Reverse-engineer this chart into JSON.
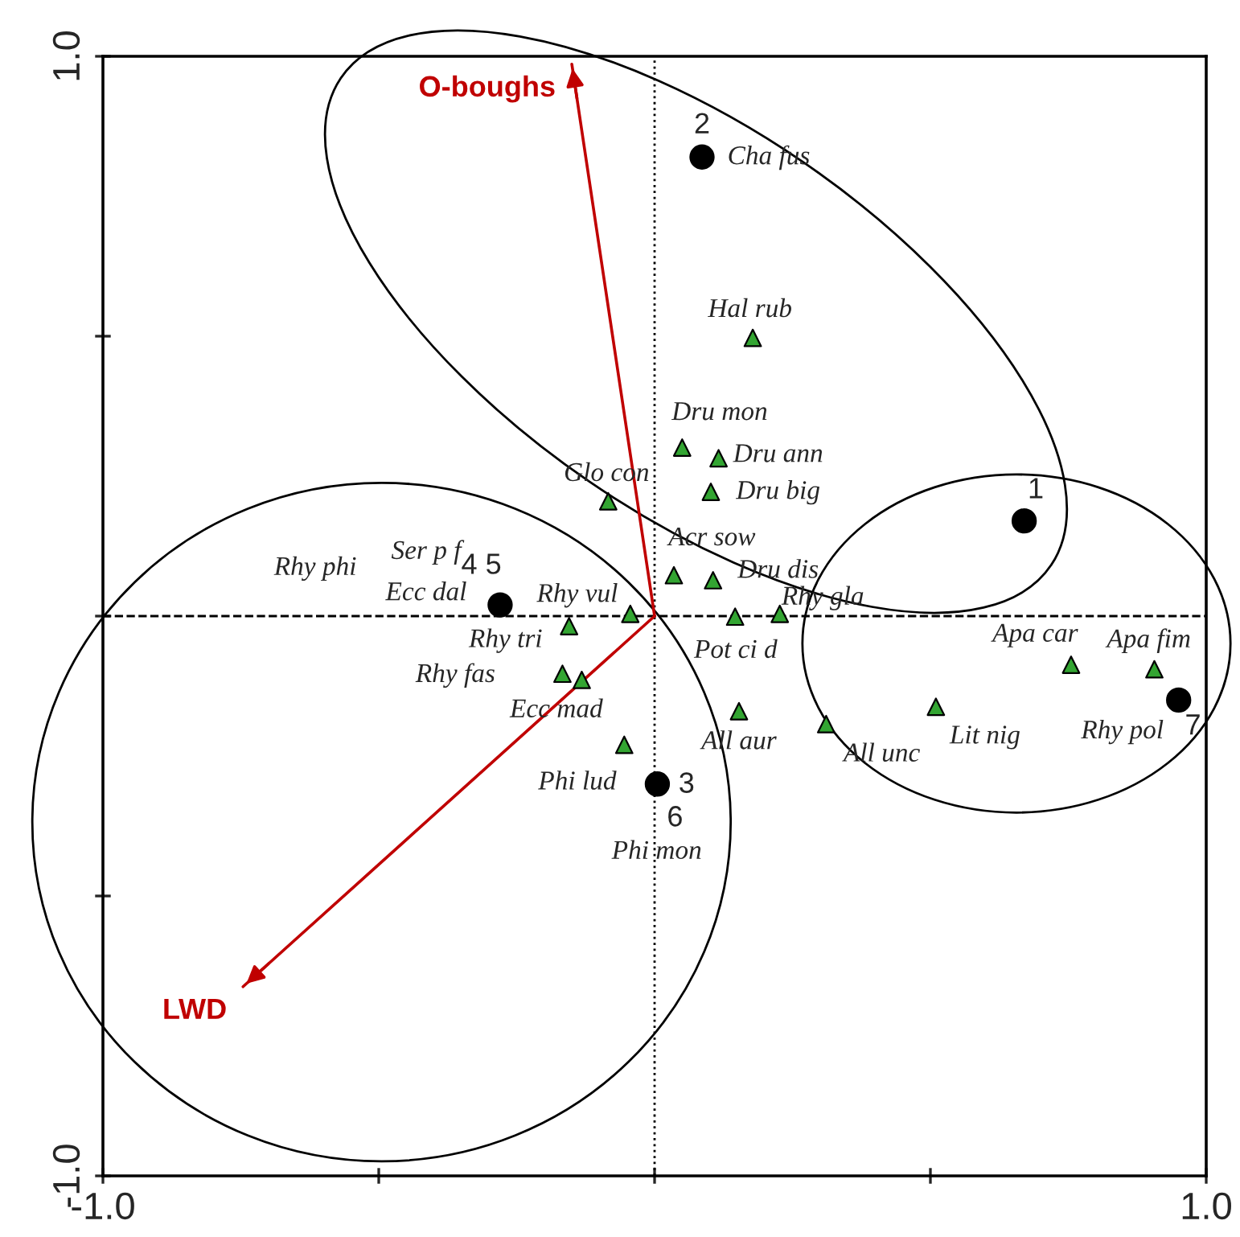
{
  "chart_data": {
    "type": "scatter",
    "xlim": [
      -1,
      1
    ],
    "ylim": [
      -1,
      1
    ],
    "xticks": [
      {
        "value": -1,
        "label": "-1.0"
      },
      {
        "value": -0.5,
        "label": null
      },
      {
        "value": 0,
        "label": null
      },
      {
        "value": 0.5,
        "label": null
      },
      {
        "value": 1,
        "label": "1.0"
      }
    ],
    "yticks": [
      {
        "value": -1,
        "label": "-1.0"
      },
      {
        "value": -0.5,
        "label": null
      },
      {
        "value": 0,
        "label": null
      },
      {
        "value": 0.5,
        "label": null
      },
      {
        "value": 1,
        "label": "1.0"
      }
    ],
    "grid": false,
    "ref_lines": [
      {
        "axis": "x",
        "value": 0,
        "color": "#000000",
        "line_style": "dotted"
      },
      {
        "axis": "y",
        "value": 0,
        "color": "#000000",
        "line_style": "dashed"
      }
    ],
    "series": [
      {
        "type": "scatter",
        "marker": "triangle",
        "color": "#33a532",
        "x": [
          0.178,
          0.05,
          0.116,
          0.102,
          -0.084,
          0.035,
          0.106,
          -0.044,
          -0.155,
          -0.167,
          -0.132,
          -0.055,
          0.153,
          0.146,
          0.227,
          0.755,
          0.906,
          0.51,
          0.311
        ],
        "values": [
          0.497,
          0.301,
          0.282,
          0.222,
          0.205,
          0.073,
          0.064,
          0.004,
          -0.018,
          -0.103,
          -0.114,
          -0.23,
          -0.17,
          -0.001,
          0.004,
          -0.087,
          -0.095,
          -0.162,
          -0.193
        ]
      },
      {
        "type": "scatter",
        "marker": "circle",
        "color": "#000000",
        "x": [
          0.086,
          0.67,
          -0.28,
          0.005,
          0.95
        ],
        "values": [
          0.82,
          0.17,
          0.02,
          -0.3,
          -0.15
        ]
      },
      {
        "type": "line",
        "name": "O-boughs",
        "color": "#c00000",
        "marker": "none",
        "line_style": "solid",
        "x": [
          0,
          -0.15
        ],
        "values": [
          0,
          0.986
        ]
      },
      {
        "type": "line",
        "name": "LWD",
        "color": "#c00000",
        "marker": "none",
        "line_style": "solid",
        "x": [
          0,
          -0.746
        ],
        "values": [
          0,
          -0.662
        ]
      }
    ],
    "annotations": [
      {
        "text": "2",
        "x": 0.086,
        "y": 0.82
      },
      {
        "text": "1",
        "x": 0.67,
        "y": 0.17
      },
      {
        "text": "4 5",
        "x": -0.28,
        "y": 0.02
      },
      {
        "text": "3",
        "x": 0.005,
        "y": -0.3
      },
      {
        "text": "6",
        "x": 0.005,
        "y": -0.3
      },
      {
        "text": "7",
        "x": 0.95,
        "y": -0.15
      },
      {
        "text": "Cha fus",
        "x": 0.086,
        "y": 0.82
      },
      {
        "text": "Hal rub",
        "x": 0.178,
        "y": 0.497
      },
      {
        "text": "Dru mon",
        "x": 0.05,
        "y": 0.301
      },
      {
        "text": "Dru ann",
        "x": 0.116,
        "y": 0.282
      },
      {
        "text": "Dru big",
        "x": 0.102,
        "y": 0.222
      },
      {
        "text": "Glo con",
        "x": -0.084,
        "y": 0.205
      },
      {
        "text": "Acr sow",
        "x": 0.035,
        "y": 0.073
      },
      {
        "text": "Dru dis",
        "x": 0.106,
        "y": 0.064
      },
      {
        "text": "Rhy gla",
        "x": 0.227,
        "y": 0.004
      },
      {
        "text": "Pot ci d",
        "x": 0.146,
        "y": -0.001
      },
      {
        "text": "Rhy vul",
        "x": -0.044,
        "y": 0.004
      },
      {
        "text": "Ser p f",
        "x": -0.28,
        "y": 0.02
      },
      {
        "text": "Ecc dal",
        "x": -0.28,
        "y": 0.02
      },
      "Rhy phi",
      {
        "text": "Rhy tri",
        "x": -0.155,
        "y": -0.018
      },
      {
        "text": "Rhy fas",
        "x": -0.167,
        "y": -0.103
      },
      {
        "text": "Ecc mad",
        "x": -0.132,
        "y": -0.114
      },
      {
        "text": "Phi lud",
        "x": -0.055,
        "y": -0.23
      },
      {
        "text": "Phi mon",
        "x": 0.005,
        "y": -0.3
      },
      {
        "text": "All aur",
        "x": 0.153,
        "y": -0.17
      },
      {
        "text": "All unc",
        "x": 0.311,
        "y": -0.193
      },
      {
        "text": "Lit nig",
        "x": 0.51,
        "y": -0.162
      },
      {
        "text": "Apa car",
        "x": 0.755,
        "y": -0.087
      },
      {
        "text": "Apa fim",
        "x": 0.906,
        "y": -0.095
      },
      {
        "text": "Rhy pol",
        "x": 0.95,
        "y": -0.15
      }
    ]
  }
}
